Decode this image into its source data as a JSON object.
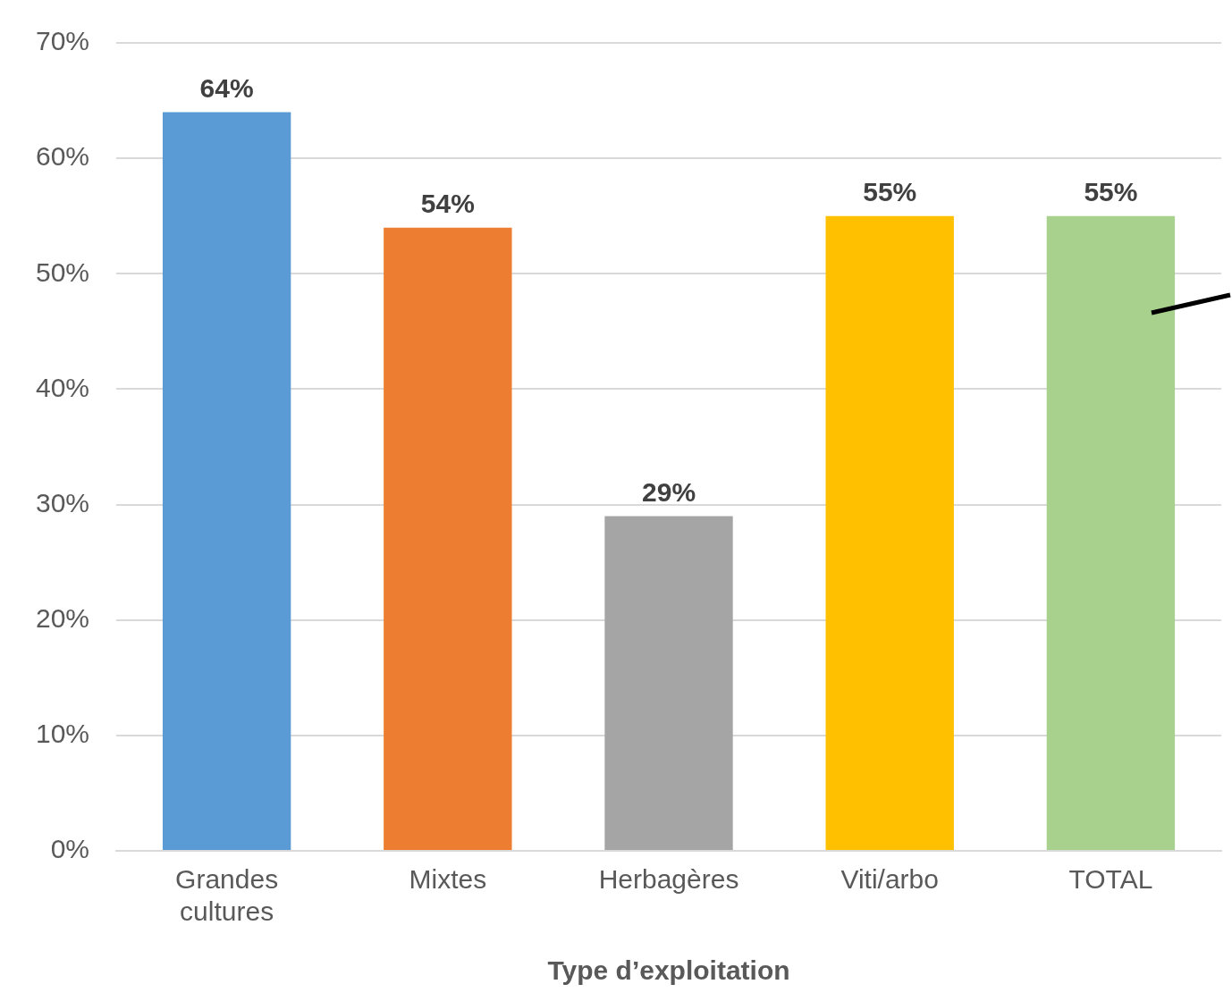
{
  "chart_data": {
    "type": "bar",
    "xlabel": "Type d’exploitation",
    "categories": [
      "Grandes cultures",
      "Mixtes",
      "Herbagères",
      "Viti/arbo",
      "TOTAL"
    ],
    "values": [
      64,
      54,
      29,
      55,
      55
    ],
    "colors": [
      "#5b9bd5",
      "#ed7d31",
      "#a5a5a5",
      "#ffc000",
      "#a9d18e"
    ],
    "value_labels": [
      "64%",
      "54%",
      "29%",
      "55%",
      "55%"
    ],
    "ylim": [
      0,
      70
    ],
    "yticks": [
      {
        "value": 0,
        "label": "0%"
      },
      {
        "value": 10,
        "label": "10%"
      },
      {
        "value": 20,
        "label": "20%"
      },
      {
        "value": 30,
        "label": "30%"
      },
      {
        "value": 40,
        "label": "40%"
      },
      {
        "value": 50,
        "label": "50%"
      },
      {
        "value": 60,
        "label": "60%"
      },
      {
        "value": 70,
        "label": "70%"
      }
    ],
    "grid": "y",
    "legend": false
  }
}
